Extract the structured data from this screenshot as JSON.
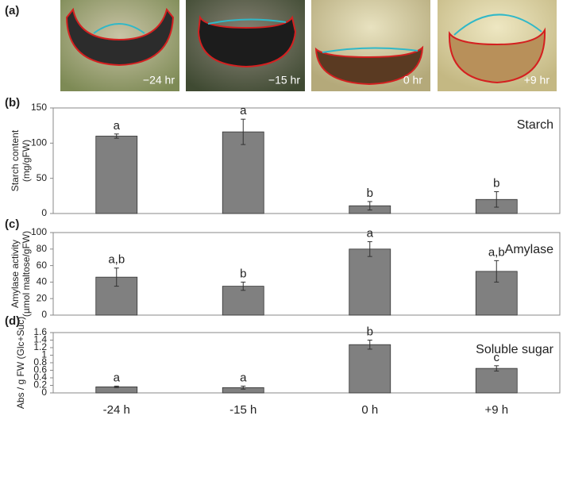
{
  "photos": {
    "panel_label": "(a)",
    "captions": [
      "−24 hr",
      "−15 hr",
      "0 hr",
      "+9 hr"
    ]
  },
  "chart_data": [
    {
      "type": "bar",
      "panel_label": "(b)",
      "title": "Starch",
      "y_label": [
        "Starch content",
        "(mg/gFW)"
      ],
      "series": [
        {
          "color": "#808080",
          "values": [
            110,
            116,
            11,
            20
          ],
          "errors": [
            3,
            18,
            6,
            11
          ]
        }
      ],
      "letters": [
        "a",
        "a",
        "b",
        "b"
      ],
      "ylim": [
        0,
        150
      ],
      "yticks": [
        0,
        50,
        100,
        150
      ]
    },
    {
      "type": "bar",
      "panel_label": "(c)",
      "title": "Amylase",
      "y_label": [
        "Amylase activity",
        "(µmol maltose/gFW)"
      ],
      "series": [
        {
          "color": "#808080",
          "values": [
            46,
            35,
            80,
            53
          ],
          "errors": [
            11,
            5,
            9,
            13
          ]
        }
      ],
      "letters": [
        "a,b",
        "b",
        "a",
        "a,b"
      ],
      "ylim": [
        0,
        100
      ],
      "yticks": [
        0,
        20,
        40,
        60,
        80,
        100
      ]
    },
    {
      "type": "bar",
      "panel_label": "(d)",
      "title": "Soluble sugar",
      "y_label": [
        "Abs / g FW (Glc+Suc)"
      ],
      "categories": [
        "-24 h",
        "-15 h",
        "0 h",
        "+9 h"
      ],
      "series": [
        {
          "color": "#808080",
          "values": [
            0.16,
            0.14,
            1.28,
            0.65
          ],
          "errors": [
            0.02,
            0.04,
            0.12,
            0.07
          ]
        }
      ],
      "letters": [
        "a",
        "a",
        "b",
        "c"
      ],
      "ylim": [
        0,
        1.6
      ],
      "yticks": [
        0,
        0.2,
        0.4,
        0.6,
        0.8,
        1,
        1.2,
        1.4,
        1.6
      ]
    }
  ]
}
